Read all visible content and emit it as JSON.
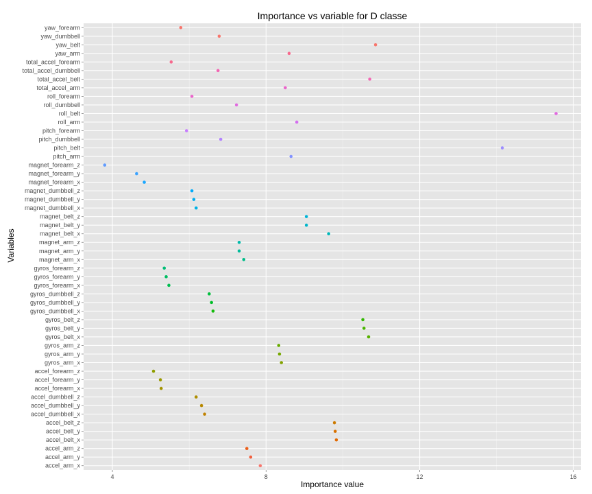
{
  "chart_data": {
    "type": "scatter",
    "title": "Importance vs variable for D classe",
    "xlabel": "Importance value",
    "ylabel": "Variables",
    "xlim": [
      3.25,
      16.2
    ],
    "x_ticks": [
      4,
      8,
      12,
      16
    ],
    "grid": true,
    "legend": "none",
    "points": [
      {
        "variable": "yaw_forearm",
        "value": 5.78,
        "color": "#F8766D"
      },
      {
        "variable": "yaw_dumbbell",
        "value": 6.78,
        "color": "#F8766D"
      },
      {
        "variable": "yaw_belt",
        "value": 10.85,
        "color": "#F8766D"
      },
      {
        "variable": "yaw_arm",
        "value": 8.6,
        "color": "#F7698D"
      },
      {
        "variable": "total_accel_forearm",
        "value": 5.53,
        "color": "#F7698D"
      },
      {
        "variable": "total_accel_dumbbell",
        "value": 6.75,
        "color": "#F366B3"
      },
      {
        "variable": "total_accel_belt",
        "value": 10.7,
        "color": "#F366B3"
      },
      {
        "variable": "total_accel_arm",
        "value": 8.5,
        "color": "#EA66CB"
      },
      {
        "variable": "roll_forearm",
        "value": 6.07,
        "color": "#EA66CB"
      },
      {
        "variable": "roll_dumbbell",
        "value": 7.23,
        "color": "#E16AE0"
      },
      {
        "variable": "roll_belt",
        "value": 15.55,
        "color": "#E16AE0"
      },
      {
        "variable": "roll_arm",
        "value": 8.8,
        "color": "#D46FEF"
      },
      {
        "variable": "pitch_forearm",
        "value": 5.93,
        "color": "#C77CFF"
      },
      {
        "variable": "pitch_dumbbell",
        "value": 6.82,
        "color": "#B383FF"
      },
      {
        "variable": "pitch_belt",
        "value": 14.15,
        "color": "#9C8DFF"
      },
      {
        "variable": "pitch_arm",
        "value": 8.65,
        "color": "#8393FF"
      },
      {
        "variable": "magnet_forearm_z",
        "value": 3.8,
        "color": "#619CFF"
      },
      {
        "variable": "magnet_forearm_y",
        "value": 4.63,
        "color": "#3CA3FF"
      },
      {
        "variable": "magnet_forearm_x",
        "value": 4.83,
        "color": "#1DA8FF"
      },
      {
        "variable": "magnet_dumbbell_z",
        "value": 6.07,
        "color": "#00ABFA"
      },
      {
        "variable": "magnet_dumbbell_y",
        "value": 6.12,
        "color": "#00AEF0"
      },
      {
        "variable": "magnet_dumbbell_x",
        "value": 6.18,
        "color": "#00B1E4"
      },
      {
        "variable": "magnet_belt_z",
        "value": 9.05,
        "color": "#00B4D8"
      },
      {
        "variable": "magnet_belt_y",
        "value": 9.05,
        "color": "#00B6CA"
      },
      {
        "variable": "magnet_belt_x",
        "value": 9.63,
        "color": "#00B8BA"
      },
      {
        "variable": "magnet_arm_z",
        "value": 7.3,
        "color": "#00BAAA"
      },
      {
        "variable": "magnet_arm_y",
        "value": 7.3,
        "color": "#00BB9A"
      },
      {
        "variable": "magnet_arm_x",
        "value": 7.42,
        "color": "#00BC88"
      },
      {
        "variable": "gyros_forearm_z",
        "value": 5.35,
        "color": "#00BD76"
      },
      {
        "variable": "gyros_forearm_y",
        "value": 5.4,
        "color": "#00BE63"
      },
      {
        "variable": "gyros_forearm_x",
        "value": 5.47,
        "color": "#00BE50"
      },
      {
        "variable": "gyros_dumbbell_z",
        "value": 6.52,
        "color": "#00BE3C"
      },
      {
        "variable": "gyros_dumbbell_y",
        "value": 6.58,
        "color": "#00BD27"
      },
      {
        "variable": "gyros_dumbbell_x",
        "value": 6.62,
        "color": "#13BB0A"
      },
      {
        "variable": "gyros_belt_z",
        "value": 10.52,
        "color": "#31B800"
      },
      {
        "variable": "gyros_belt_y",
        "value": 10.55,
        "color": "#47B500"
      },
      {
        "variable": "gyros_belt_x",
        "value": 10.67,
        "color": "#58B100"
      },
      {
        "variable": "gyros_arm_z",
        "value": 8.33,
        "color": "#68AC00"
      },
      {
        "variable": "gyros_arm_y",
        "value": 8.35,
        "color": "#76A800"
      },
      {
        "variable": "gyros_arm_x",
        "value": 8.4,
        "color": "#83A300"
      },
      {
        "variable": "accel_forearm_z",
        "value": 5.07,
        "color": "#8F9E00"
      },
      {
        "variable": "accel_forearm_y",
        "value": 5.25,
        "color": "#9A9800"
      },
      {
        "variable": "accel_forearm_x",
        "value": 5.27,
        "color": "#A49300"
      },
      {
        "variable": "accel_dumbbell_z",
        "value": 6.18,
        "color": "#AE8E00"
      },
      {
        "variable": "accel_dumbbell_y",
        "value": 6.32,
        "color": "#B78800"
      },
      {
        "variable": "accel_dumbbell_x",
        "value": 6.4,
        "color": "#C08200"
      },
      {
        "variable": "accel_belt_z",
        "value": 9.78,
        "color": "#CC7A00"
      },
      {
        "variable": "accel_belt_y",
        "value": 9.8,
        "color": "#D87100"
      },
      {
        "variable": "accel_belt_x",
        "value": 9.83,
        "color": "#E26900"
      },
      {
        "variable": "accel_arm_z",
        "value": 7.5,
        "color": "#EB5F1A"
      },
      {
        "variable": "accel_arm_y",
        "value": 7.6,
        "color": "#F2603E"
      },
      {
        "variable": "accel_arm_x",
        "value": 7.85,
        "color": "#F8766D"
      }
    ]
  }
}
